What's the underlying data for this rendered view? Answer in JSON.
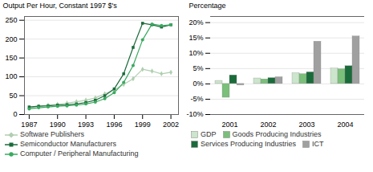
{
  "chart_data": [
    {
      "type": "line",
      "x": [
        1987,
        1988,
        1989,
        1990,
        1991,
        1992,
        1993,
        1994,
        1995,
        1996,
        1997,
        1998,
        1999,
        2000,
        2001,
        2002
      ],
      "series": [
        {
          "name": "Software Publishers",
          "color": "#b0ceb0",
          "marker": "diamond",
          "values": [
            18,
            22,
            25,
            27,
            30,
            34,
            38,
            44,
            55,
            65,
            80,
            95,
            120,
            115,
            108,
            112
          ]
        },
        {
          "name": "Semiconductor Manufacturers",
          "color": "#1a6b3a",
          "marker": "square",
          "values": [
            20,
            22,
            23,
            25,
            26,
            28,
            32,
            38,
            50,
            68,
            108,
            178,
            242,
            238,
            232,
            238
          ]
        },
        {
          "name": "Computer / Peripheral Manufacturing",
          "color": "#3aaa60",
          "marker": "circle",
          "values": [
            15,
            18,
            20,
            22,
            23,
            25,
            28,
            33,
            42,
            58,
            85,
            130,
            198,
            240,
            236,
            238
          ]
        }
      ],
      "ylabel": "Output Per Hour, Constant 1997 $'s",
      "xlim": [
        1986.5,
        2002.8
      ],
      "xticks": [
        1987,
        1990,
        1993,
        1996,
        1999,
        2002
      ],
      "ylim": [
        0,
        260
      ],
      "yticks": [
        0,
        50,
        100,
        150,
        200,
        250
      ],
      "grid": "y",
      "legend": "bottom"
    },
    {
      "type": "bar",
      "categories": [
        "2001",
        "2002",
        "2003",
        "2004"
      ],
      "series": [
        {
          "name": "GDP",
          "color": "#cce5cc",
          "values": [
            1.0,
            1.8,
            3.5,
            5.0
          ]
        },
        {
          "name": "Goods Producing Industries",
          "color": "#7abf7a",
          "values": [
            -4.5,
            1.5,
            3.2,
            4.8
          ]
        },
        {
          "name": "Services Producing Industries",
          "color": "#1a6b3a",
          "values": [
            2.8,
            1.9,
            3.8,
            5.8
          ]
        },
        {
          "name": "ICT",
          "color": "#a0a0a0",
          "values": [
            -0.5,
            2.2,
            13.8,
            15.5
          ]
        }
      ],
      "ylabel": "Percentage",
      "ylim": [
        -10,
        22
      ],
      "yticks": [
        {
          "value": -10,
          "label": "-10%"
        },
        {
          "value": -5,
          "label": "-5%"
        },
        {
          "value": 0,
          "label": "0%"
        },
        {
          "value": 5,
          "label": "5%"
        },
        {
          "value": 10,
          "label": "10%"
        },
        {
          "value": 15,
          "label": "15%"
        },
        {
          "value": 20,
          "label": "20%"
        }
      ],
      "grid": "y",
      "legend": "bottom"
    }
  ]
}
